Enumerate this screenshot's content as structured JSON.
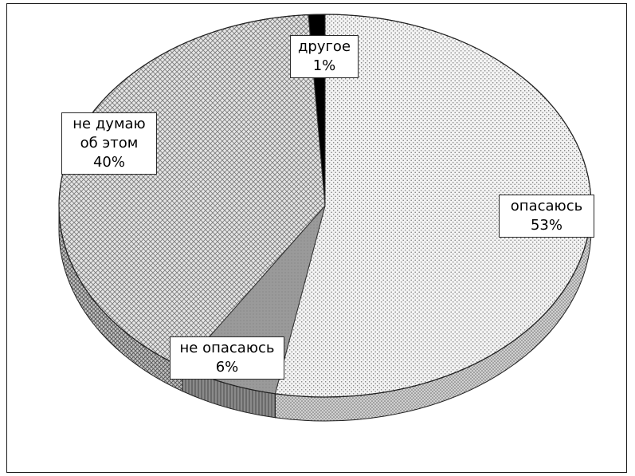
{
  "chart_data": {
    "type": "pie",
    "title": "",
    "slices": [
      {
        "label_lines": [
          "опасаюсь"
        ],
        "label": "опасаюсь",
        "value": 53,
        "value_text": "53%",
        "pattern": "fine-dots"
      },
      {
        "label_lines": [
          "не опасаюсь"
        ],
        "label": "не опасаюсь",
        "value": 6,
        "value_text": "6%",
        "pattern": "dark-gray"
      },
      {
        "label_lines": [
          "не думаю",
          "об этом"
        ],
        "label": "не думаю об этом",
        "value": 40,
        "value_text": "40%",
        "pattern": "crosshatch"
      },
      {
        "label_lines": [
          "другое"
        ],
        "label": "другое",
        "value": 1,
        "value_text": "1%",
        "pattern": "black"
      }
    ],
    "unit": "%",
    "three_d": true,
    "legend": "none"
  }
}
